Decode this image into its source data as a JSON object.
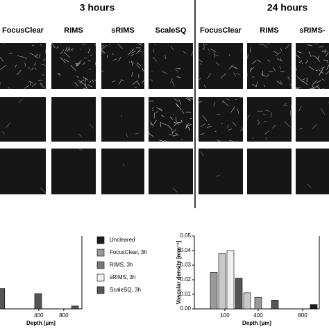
{
  "figure": {
    "headers": [
      "3 hours",
      "24 hours"
    ],
    "columns": [
      "FocusClear",
      "RIMS",
      "sRIMS",
      "ScaleSQ",
      "FocusClear",
      "RIMS",
      "sRIMS-"
    ]
  },
  "legend": [
    {
      "name": "Uncleared",
      "color": "#1e1e1e"
    },
    {
      "name": "FocusClear, 3h",
      "color": "#9a9a9a"
    },
    {
      "name": "RIMS, 3h",
      "color": "#7a7a7a"
    },
    {
      "name": "sRIMS, 3h",
      "color": "#f0f0f0"
    },
    {
      "name": "ScaleSQ, 3h",
      "color": "#555555"
    }
  ],
  "chart_data": [
    {
      "type": "bar",
      "xlabel": "Depth [µm]",
      "x": [
        -200,
        390,
        980
      ],
      "values": [
        0.014,
        0.0105,
        0.002
      ],
      "colors": [
        "#555555",
        "#555555",
        "#555555"
      ],
      "xlim": [
        -220,
        1090
      ],
      "ylim": [
        0,
        0.05
      ],
      "xticks": [
        400,
        800
      ]
    },
    {
      "type": "bar",
      "xlabel": "Depth [µm]",
      "ylabel": "Vascular density [mm⁻¹]",
      "x": [
        0,
        75,
        150,
        225,
        300,
        400,
        550,
        900
      ],
      "values": [
        0.025,
        0.038,
        0.04,
        0.021,
        0.011,
        0.008,
        0.006,
        0.003
      ],
      "colors": [
        "#9a9a9a",
        "#c8c8c8",
        "#f0f0f0",
        "#555555",
        "#c8c8c8",
        "#9a9a9a",
        "#555555",
        "#1e1e1e"
      ],
      "xlim": [
        -175,
        950
      ],
      "ylim": [
        0,
        0.05
      ],
      "xticks": [
        100,
        400,
        800
      ],
      "yticks": [
        {
          "value": 0,
          "label": "0.00"
        },
        {
          "value": 0.01,
          "label": "0.01"
        },
        {
          "value": 0.02,
          "label": "0.02"
        },
        {
          "value": 0.03,
          "label": "0.03"
        },
        {
          "value": 0.04,
          "label": "0.04"
        },
        {
          "value": 0.05,
          "label": "0.05"
        }
      ]
    }
  ]
}
